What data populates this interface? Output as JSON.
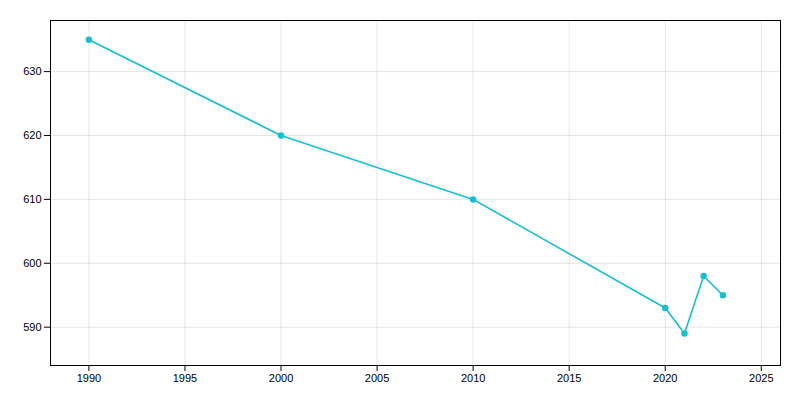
{
  "chart_data": {
    "type": "line",
    "x": [
      1990,
      2000,
      2010,
      2020,
      2021,
      2022,
      2023
    ],
    "values": [
      635,
      620,
      610,
      593,
      589,
      598,
      595
    ],
    "color": "#17BECF",
    "marker": "circle",
    "xlim": [
      1988,
      2026
    ],
    "ylim": [
      584,
      638
    ],
    "xticks": [
      1990,
      1995,
      2000,
      2005,
      2010,
      2015,
      2020,
      2025
    ],
    "yticks": [
      590,
      600,
      610,
      620,
      630
    ],
    "grid": true
  }
}
